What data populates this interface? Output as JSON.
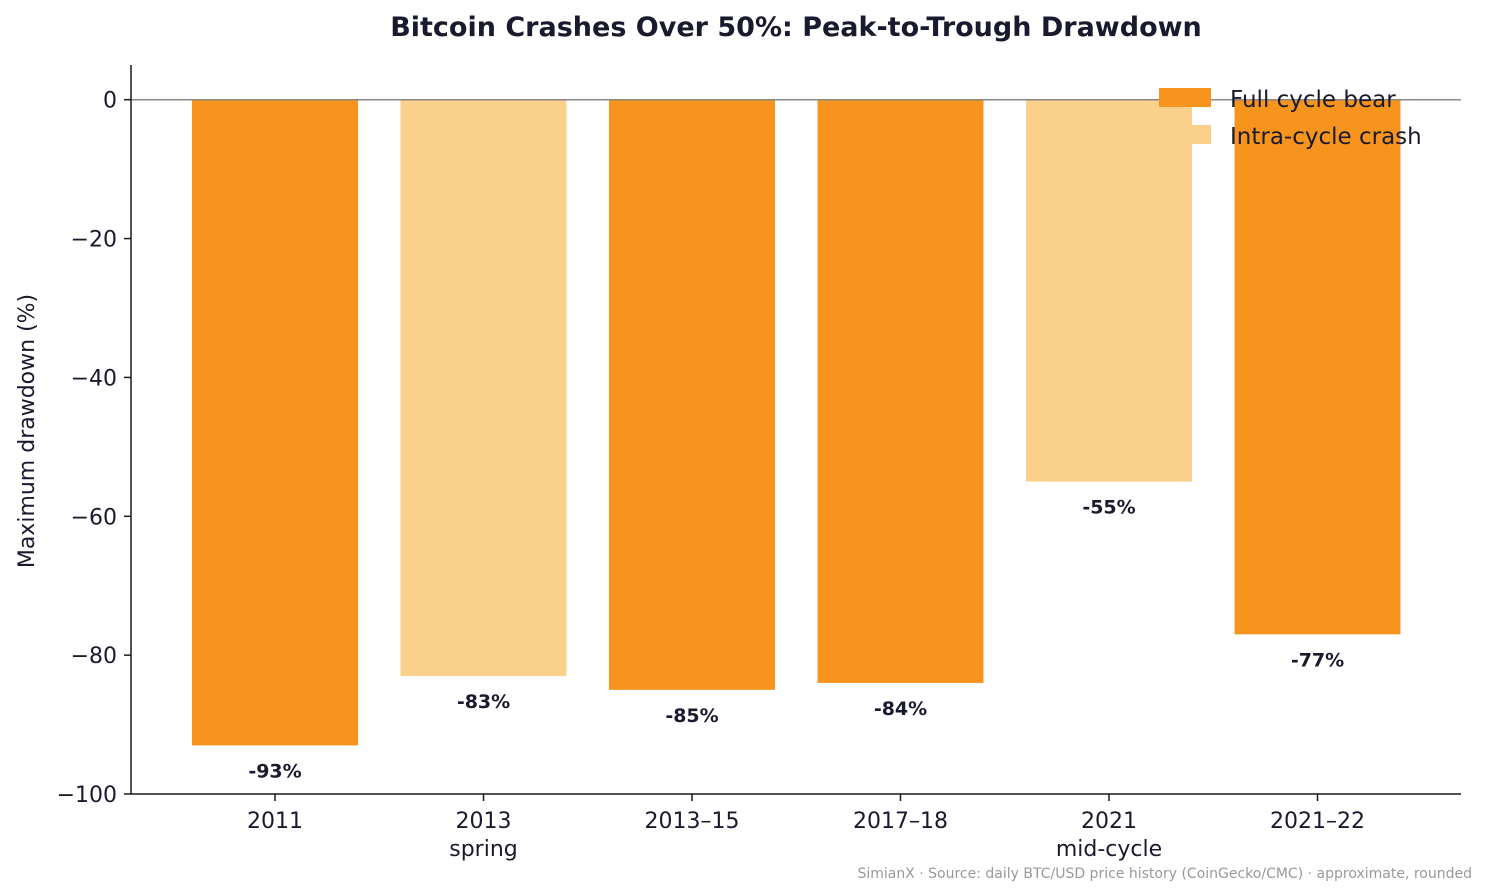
{
  "chart_data": {
    "type": "bar",
    "title": "Bitcoin Crashes Over 50%: Peak-to-Trough Drawdown",
    "xlabel": "",
    "ylabel": "Maximum drawdown (%)",
    "ylim": [
      -100,
      5
    ],
    "yticks": [
      0,
      -20,
      -40,
      -60,
      -80,
      -100
    ],
    "ytick_labels": [
      "0",
      "−20",
      "−40",
      "−60",
      "−80",
      "−100"
    ],
    "categories": [
      [
        "2011"
      ],
      [
        "2013",
        "spring"
      ],
      [
        "2013–15"
      ],
      [
        "2017–18"
      ],
      [
        "2021",
        "mid-cycle"
      ],
      [
        "2021–22"
      ]
    ],
    "values": [
      -93,
      -83,
      -85,
      -84,
      -55,
      -77
    ],
    "value_labels": [
      "-93%",
      "-83%",
      "-85%",
      "-84%",
      "-55%",
      "-77%"
    ],
    "bar_types": [
      "full",
      "intra",
      "full",
      "full",
      "intra",
      "full"
    ],
    "legend": {
      "placement": "top-right",
      "entries": [
        {
          "key": "full",
          "label": "Full cycle bear",
          "color": "#F7941D"
        },
        {
          "key": "intra",
          "label": "Intra-cycle crash",
          "color": "#FAD08B"
        }
      ]
    },
    "grid": false,
    "footnote": "SimianX · Source: daily BTC/USD price history (CoinGecko/CMC) · approximate, rounded"
  }
}
